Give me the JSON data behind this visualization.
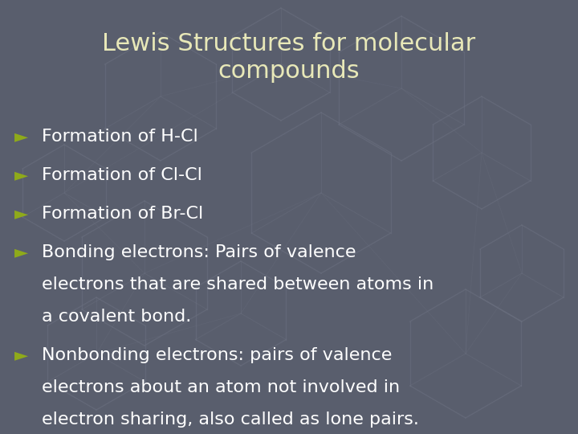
{
  "background_color": "#595e6d",
  "title_text": "Lewis Structures for molecular\ncompounds",
  "title_color": "#e8e8b8",
  "title_fontsize": 22,
  "bullet_color": "#8faa1a",
  "text_color": "#ffffff",
  "bullet_fontsize": 16,
  "bullet_arrow": "►",
  "bullets": [
    {
      "first_line": "Formation of H-Cl",
      "extra_lines": []
    },
    {
      "first_line": "Formation of Cl-Cl",
      "extra_lines": []
    },
    {
      "first_line": "Formation of Br-Cl",
      "extra_lines": []
    },
    {
      "first_line": "Bonding electrons: Pairs of valence",
      "extra_lines": [
        "electrons that are shared between atoms in",
        "a covalent bond."
      ]
    },
    {
      "first_line": "Nonbonding electrons: pairs of valence",
      "extra_lines": [
        "electrons about an atom not involved in",
        "electron sharing, also called as lone pairs."
      ]
    }
  ],
  "watermark_color": "#6b7080",
  "watermark_alpha": 0.55
}
